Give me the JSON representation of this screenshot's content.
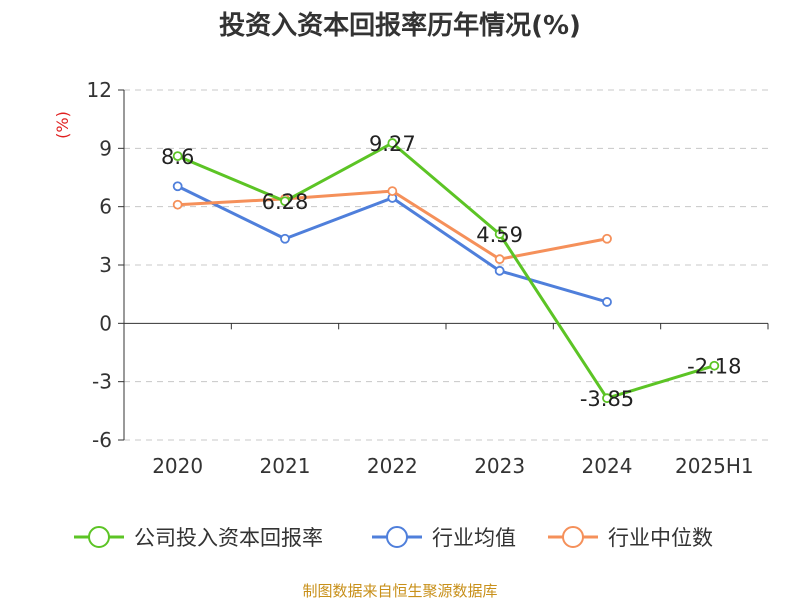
{
  "colors": {
    "company": "#5cc425",
    "industry_avg": "#4f7fdb",
    "industry_median": "#f5905a",
    "unit": "#e02020",
    "source": "#c8901a",
    "grid": "#c8c8c8",
    "axis": "#333333"
  },
  "chart_data": {
    "type": "line",
    "title": "投资入资本回报率历年情况(%)",
    "ylabel": "(%)",
    "categories": [
      "2020",
      "2021",
      "2022",
      "2023",
      "2024",
      "2025H1"
    ],
    "ylim": [
      -6,
      12
    ],
    "yticks": [
      12,
      9,
      6,
      3,
      0,
      -3,
      -6
    ],
    "grid": true,
    "legend_position": "bottom",
    "series": [
      {
        "name": "公司投入资本回报率",
        "color_key": "company",
        "values": [
          8.6,
          6.28,
          9.27,
          4.59,
          -3.85,
          -2.18
        ],
        "labels": [
          "8.6",
          "6.28",
          "9.27",
          "4.59",
          "-3.85",
          "-2.18"
        ]
      },
      {
        "name": "行业均值",
        "color_key": "industry_avg",
        "values": [
          7.05,
          4.35,
          6.45,
          2.7,
          1.1,
          null
        ]
      },
      {
        "name": "行业中位数",
        "color_key": "industry_median",
        "values": [
          6.1,
          6.4,
          6.8,
          3.3,
          4.35,
          null
        ]
      }
    ]
  },
  "footer": {
    "source": "制图数据来自恒生聚源数据库"
  }
}
